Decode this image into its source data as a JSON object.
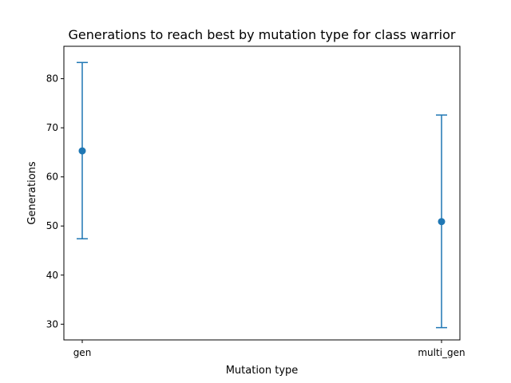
{
  "chart_data": {
    "type": "scatter",
    "title": "Generations to reach best by mutation type for class warrior",
    "xlabel": "Mutation type",
    "ylabel": "Generations",
    "categories": [
      "gen",
      "multi_gen"
    ],
    "series": [
      {
        "mean": [
          65.3,
          50.9
        ],
        "lower": [
          47.4,
          29.3
        ],
        "upper": [
          83.3,
          72.6
        ],
        "color": "#1f77b4",
        "marker": "circle",
        "errorbars": true
      }
    ],
    "ylim": [
      26.8,
      86.6
    ],
    "yticks": [
      30,
      40,
      50,
      60,
      70,
      80
    ],
    "grid": false,
    "legend": "none"
  }
}
